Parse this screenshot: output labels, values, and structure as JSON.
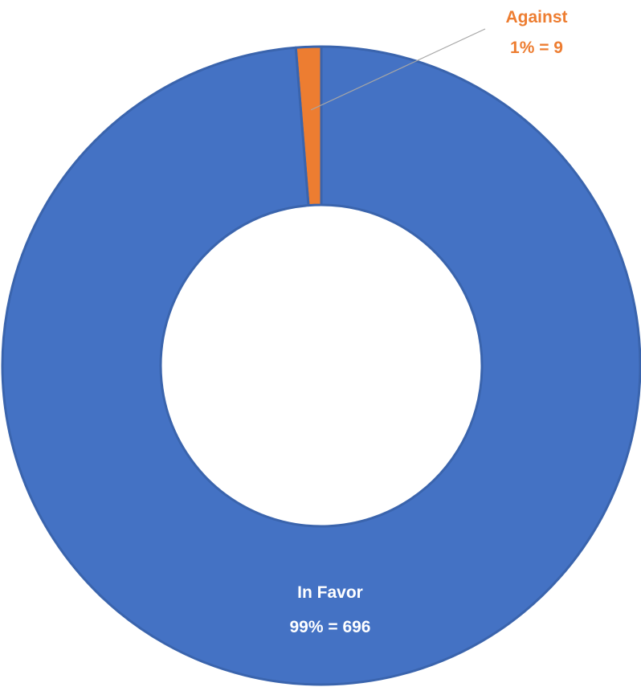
{
  "chart_data": {
    "type": "pie",
    "subtype": "donut",
    "title": "",
    "slices": [
      {
        "name": "Against",
        "value": 9,
        "percent_label": "1%",
        "color": "#ED7D31"
      },
      {
        "name": "In Favor",
        "value": 696,
        "percent_label": "99%",
        "color": "#4472C4"
      }
    ],
    "data_labels": {
      "against": {
        "line1": "Against",
        "line2": "1% = 9",
        "color": "#ED7D31"
      },
      "in_favor": {
        "line1": "In Favor",
        "line2": "99% = 696",
        "color": "#FFFFFF"
      }
    },
    "legend": "none"
  }
}
